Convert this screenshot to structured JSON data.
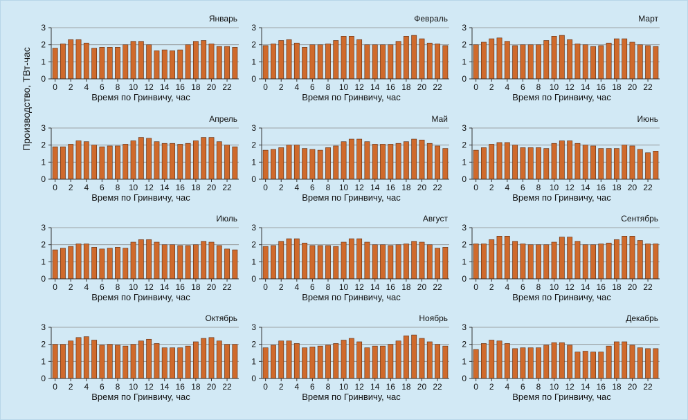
{
  "chart_data": {
    "type": "bar",
    "ylabel": "Производство, ТВт-час",
    "xlabel": "Время по Гринвичу, час",
    "ylim": [
      0,
      3
    ],
    "yticks": [
      "0",
      "1",
      "2",
      "3"
    ],
    "xticks": [
      "0",
      "2",
      "4",
      "6",
      "8",
      "10",
      "12",
      "14",
      "16",
      "18",
      "20",
      "22"
    ],
    "hours": [
      0,
      1,
      2,
      3,
      4,
      5,
      6,
      7,
      8,
      9,
      10,
      11,
      12,
      13,
      14,
      15,
      16,
      17,
      18,
      19,
      20,
      21,
      22,
      23
    ],
    "grid": true,
    "colors": {
      "bar": "#cf6a2c",
      "bar_edge": "#5a2a10",
      "background": "#d2e9f5"
    },
    "panels": [
      {
        "month": "Январь",
        "values": [
          1.8,
          2.05,
          2.3,
          2.3,
          2.1,
          1.8,
          1.85,
          1.85,
          1.85,
          2.0,
          2.2,
          2.2,
          2.0,
          1.65,
          1.7,
          1.65,
          1.7,
          2.0,
          2.2,
          2.25,
          2.05,
          1.9,
          1.9,
          1.85
        ]
      },
      {
        "month": "Февраль",
        "values": [
          1.95,
          2.05,
          2.25,
          2.3,
          2.1,
          1.85,
          2.0,
          2.0,
          2.05,
          2.25,
          2.5,
          2.5,
          2.3,
          2.0,
          2.0,
          2.0,
          2.0,
          2.2,
          2.5,
          2.55,
          2.35,
          2.1,
          2.05,
          1.95
        ]
      },
      {
        "month": "Март",
        "values": [
          2.0,
          2.15,
          2.35,
          2.4,
          2.2,
          1.95,
          2.0,
          2.0,
          2.0,
          2.25,
          2.5,
          2.55,
          2.3,
          2.05,
          2.0,
          1.9,
          1.95,
          2.1,
          2.35,
          2.35,
          2.15,
          2.0,
          1.95,
          1.9
        ]
      },
      {
        "month": "Апрель",
        "values": [
          1.9,
          1.9,
          2.05,
          2.25,
          2.2,
          2.0,
          1.9,
          1.95,
          1.95,
          2.05,
          2.25,
          2.45,
          2.4,
          2.2,
          2.1,
          2.1,
          2.05,
          2.1,
          2.25,
          2.45,
          2.45,
          2.2,
          2.0,
          1.9
        ]
      },
      {
        "month": "Май",
        "values": [
          1.7,
          1.75,
          1.85,
          2.0,
          2.0,
          1.8,
          1.75,
          1.7,
          1.85,
          1.95,
          2.2,
          2.35,
          2.35,
          2.2,
          2.05,
          2.05,
          2.05,
          2.1,
          2.2,
          2.35,
          2.3,
          2.1,
          1.95,
          1.8
        ]
      },
      {
        "month": "Июнь",
        "values": [
          1.7,
          1.85,
          2.05,
          2.15,
          2.15,
          2.0,
          1.85,
          1.85,
          1.85,
          1.8,
          2.1,
          2.25,
          2.25,
          2.1,
          2.0,
          1.95,
          1.8,
          1.8,
          1.8,
          2.0,
          1.95,
          1.75,
          1.55,
          1.65
        ]
      },
      {
        "month": "Июль",
        "values": [
          1.7,
          1.8,
          1.9,
          2.05,
          2.05,
          1.85,
          1.75,
          1.8,
          1.85,
          1.8,
          2.15,
          2.3,
          2.3,
          2.15,
          2.0,
          2.0,
          1.95,
          1.95,
          2.0,
          2.2,
          2.15,
          1.95,
          1.75,
          1.7
        ]
      },
      {
        "month": "Август",
        "values": [
          1.9,
          1.95,
          2.2,
          2.35,
          2.35,
          2.1,
          1.95,
          1.95,
          1.95,
          1.9,
          2.15,
          2.35,
          2.35,
          2.15,
          2.0,
          2.0,
          1.95,
          2.0,
          2.05,
          2.2,
          2.15,
          2.0,
          1.8,
          1.85
        ]
      },
      {
        "month": "Сентябрь",
        "values": [
          2.05,
          2.05,
          2.3,
          2.5,
          2.5,
          2.2,
          2.05,
          2.0,
          2.0,
          2.0,
          2.15,
          2.45,
          2.45,
          2.2,
          2.0,
          2.0,
          2.05,
          2.1,
          2.3,
          2.5,
          2.5,
          2.25,
          2.05,
          2.05
        ]
      },
      {
        "month": "Октябрь",
        "values": [
          2.0,
          2.0,
          2.2,
          2.4,
          2.45,
          2.25,
          1.95,
          2.0,
          1.95,
          1.9,
          2.0,
          2.2,
          2.3,
          2.05,
          1.8,
          1.8,
          1.8,
          1.9,
          2.15,
          2.35,
          2.4,
          2.2,
          2.0,
          2.0
        ]
      },
      {
        "month": "Ноябрь",
        "values": [
          1.8,
          1.95,
          2.2,
          2.2,
          2.05,
          1.8,
          1.85,
          1.9,
          1.95,
          2.05,
          2.25,
          2.35,
          2.15,
          1.8,
          1.9,
          1.9,
          2.0,
          2.2,
          2.5,
          2.55,
          2.35,
          2.15,
          2.0,
          1.9
        ]
      },
      {
        "month": "Декабрь",
        "values": [
          1.7,
          2.05,
          2.25,
          2.2,
          2.05,
          1.75,
          1.8,
          1.8,
          1.8,
          1.95,
          2.1,
          2.1,
          1.95,
          1.55,
          1.6,
          1.55,
          1.55,
          1.9,
          2.15,
          2.15,
          1.95,
          1.8,
          1.75,
          1.75
        ]
      }
    ]
  }
}
